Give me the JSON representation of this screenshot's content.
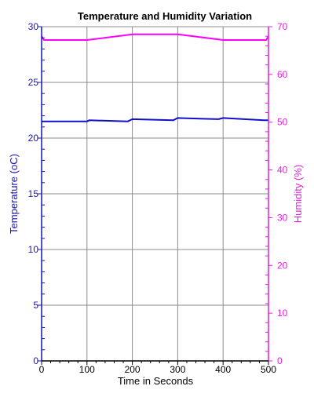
{
  "chart_data": {
    "type": "line",
    "title": "Temperature and Humidity Variation",
    "xlabel": "Time in Seconds",
    "ylabel_left": "Temperature (oC)",
    "ylabel_right": "Humidity (%)",
    "xlim": [
      0,
      500
    ],
    "ylim_left": [
      0,
      30
    ],
    "ylim_right": [
      0,
      70
    ],
    "x_ticks": [
      0,
      100,
      200,
      300,
      400,
      500
    ],
    "y_left_ticks": [
      0,
      5,
      10,
      15,
      20,
      25,
      30
    ],
    "y_right_ticks": [
      0,
      10,
      20,
      30,
      40,
      50,
      60,
      70
    ],
    "grid": true,
    "series": [
      {
        "axis": "left",
        "color": "#1010c8",
        "x": [
          0,
          100,
          105,
          190,
          200,
          290,
          300,
          390,
          400,
          490,
          500
        ],
        "values": [
          21.5,
          21.5,
          21.6,
          21.5,
          21.7,
          21.6,
          21.8,
          21.7,
          21.8,
          21.6,
          21.6
        ]
      },
      {
        "axis": "right",
        "color": "#ff00ff",
        "x": [
          0,
          5,
          100,
          200,
          300,
          400,
          495,
          500
        ],
        "values": [
          68.0,
          67.2,
          67.2,
          68.4,
          68.4,
          67.2,
          67.2,
          68.0
        ]
      }
    ]
  }
}
